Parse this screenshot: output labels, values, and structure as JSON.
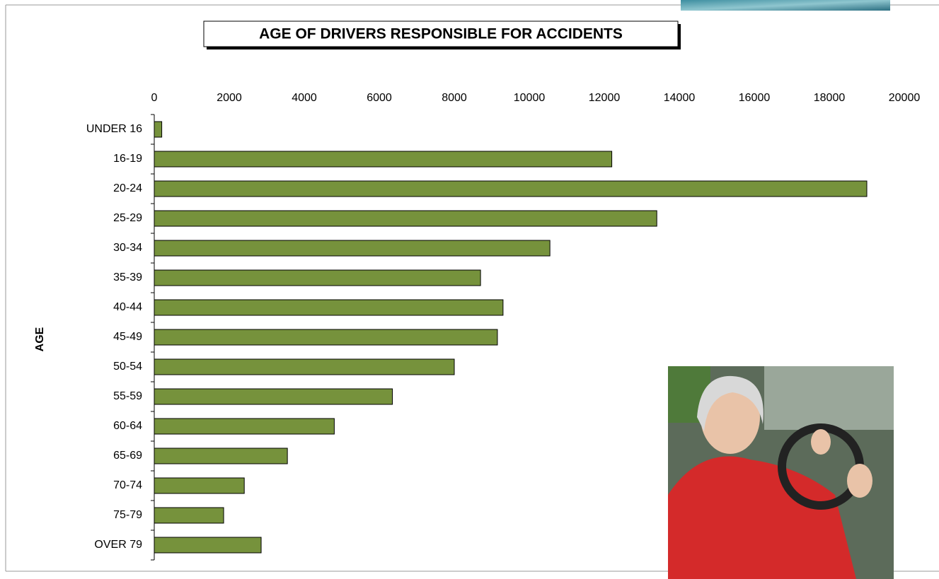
{
  "chart_data": {
    "type": "bar",
    "orientation": "horizontal",
    "title": "AGE OF DRIVERS RESPONSIBLE FOR ACCIDENTS",
    "y_label": "AGE",
    "categories": [
      "UNDER 16",
      "16-19",
      "20-24",
      "25-29",
      "30-34",
      "35-39",
      "40-44",
      "45-49",
      "50-54",
      "55-59",
      "60-64",
      "65-69",
      "70-74",
      "75-79",
      "OVER 79"
    ],
    "values": [
      200,
      12200,
      19000,
      13400,
      10550,
      8700,
      9300,
      9150,
      8000,
      6350,
      4800,
      3550,
      2400,
      1850,
      2850
    ],
    "color": "#76923c",
    "xlim": [
      0,
      20000
    ],
    "xticks": [
      0,
      2000,
      4000,
      6000,
      8000,
      10000,
      12000,
      14000,
      16000,
      18000,
      20000
    ],
    "grid": false
  }
}
